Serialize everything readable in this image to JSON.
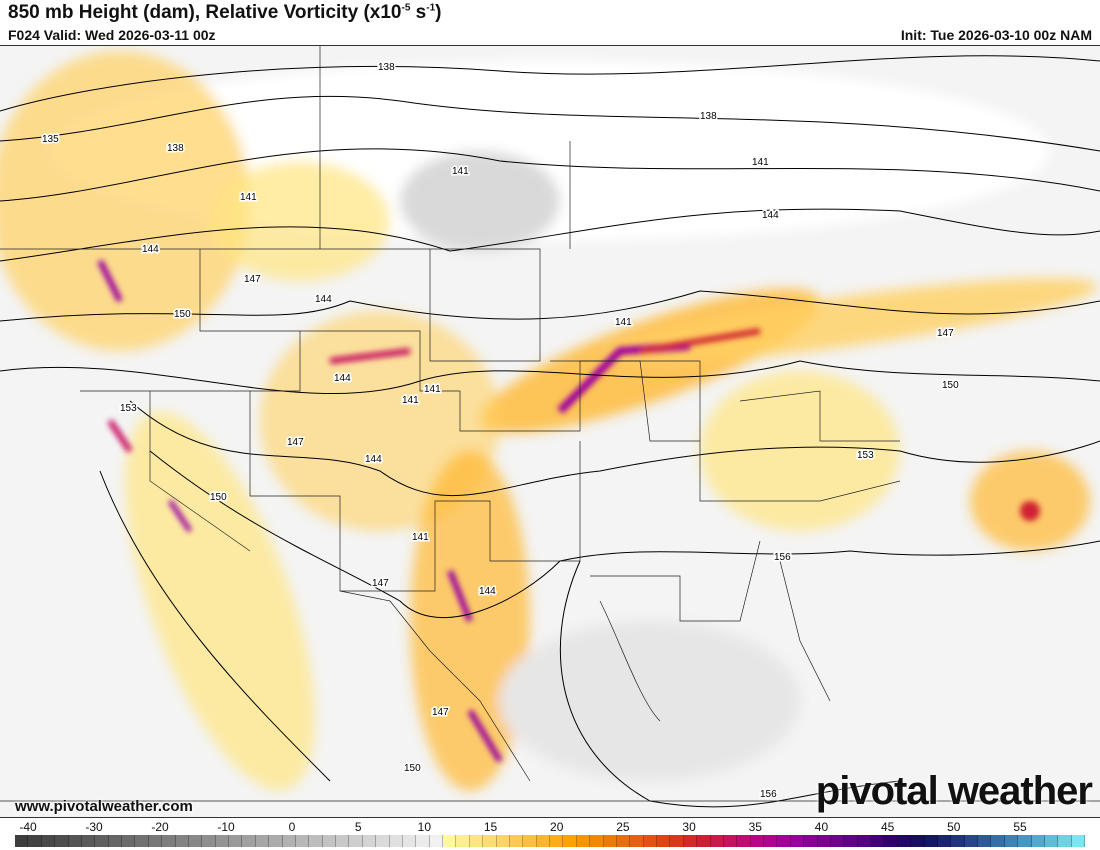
{
  "header": {
    "title": "850 mb Height (dam), Relative Vorticity (x10",
    "title_exp1": "-5",
    "title_mid": " s",
    "title_exp2": "-1",
    "title_end": ")",
    "valid": "F024 Valid: Wed 2026-03-11 00z",
    "init": "Init: Tue 2026-03-10 00z NAM"
  },
  "map": {
    "contour_labels": [
      "138",
      "138",
      "135",
      "138",
      "141",
      "141",
      "141",
      "144",
      "144",
      "147",
      "144",
      "150",
      "141",
      "147",
      "144",
      "141",
      "141",
      "150",
      "153",
      "147",
      "144",
      "153",
      "150",
      "141",
      "147",
      "144",
      "156",
      "147",
      "150",
      "156"
    ]
  },
  "footer": {
    "website": "www.pivotalweather.com",
    "logo": "pivotalweather"
  },
  "colorbar": {
    "ticks": [
      "-40",
      "-30",
      "-20",
      "-10",
      "0",
      "5",
      "10",
      "15",
      "20",
      "25",
      "30",
      "35",
      "40",
      "45",
      "50",
      "55"
    ],
    "range": [
      -40,
      60
    ],
    "colors": [
      "#3a3a3a",
      "#4a4a4a",
      "#5a5a5a",
      "#6a6a6a",
      "#7a7a7a",
      "#8a8a8a",
      "#9a9a9a",
      "#aaaaaa",
      "#bbbbbb",
      "#cccccc",
      "#dddddd",
      "#ededed",
      "#ffffa0",
      "#ffe680",
      "#ffd060",
      "#ffb830",
      "#ffa000",
      "#f08000",
      "#e86010",
      "#e04010",
      "#d02030",
      "#c81060",
      "#b80090",
      "#9a00a0",
      "#7a0090",
      "#5a0088",
      "#300070",
      "#101060",
      "#203080",
      "#3060a0",
      "#4090c0",
      "#60c0d8",
      "#80f0f8"
    ]
  }
}
